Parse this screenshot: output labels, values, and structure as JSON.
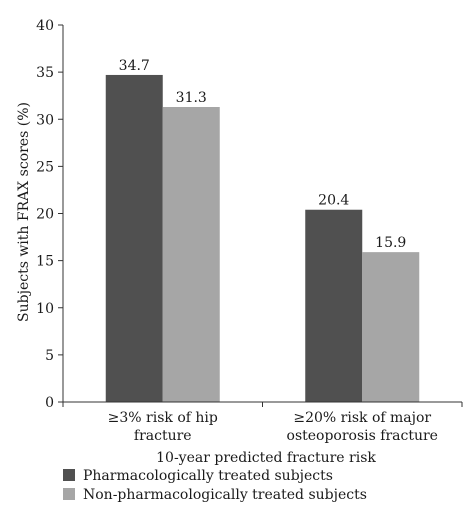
{
  "chart_data": {
    "type": "bar",
    "title": "",
    "xlabel": "10-year predicted fracture risk",
    "ylabel": "Subjects with FRAX scores (%)",
    "ylim": [
      0,
      40
    ],
    "yticks": [
      0,
      5,
      10,
      15,
      20,
      25,
      30,
      35,
      40
    ],
    "categories": [
      [
        "≥3% risk of hip",
        "fracture"
      ],
      [
        "≥20% risk of major",
        "osteoporosis fracture"
      ]
    ],
    "series": [
      {
        "name": "Pharmacologically treated subjects",
        "color": "#505050",
        "values": [
          34.7,
          20.4
        ],
        "labels": [
          "34.7",
          "20.4"
        ]
      },
      {
        "name": "Non-pharmacologically treated subjects",
        "color": "#a6a6a6",
        "values": [
          31.3,
          15.9
        ],
        "labels": [
          "31.3",
          "15.9"
        ]
      }
    ],
    "grid": false,
    "legend_position": "bottom-left"
  }
}
